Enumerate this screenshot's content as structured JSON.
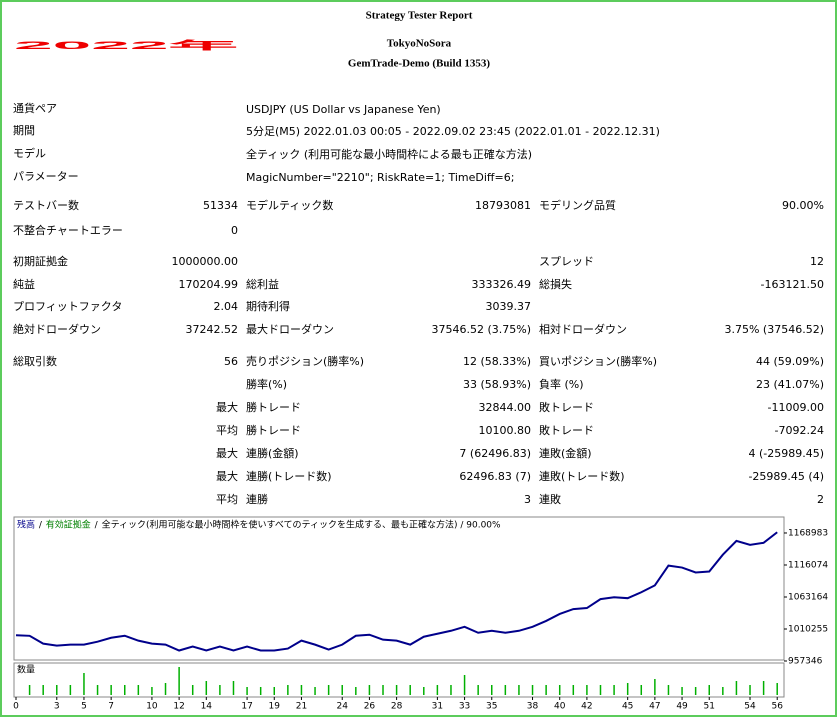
{
  "header": {
    "badge": "2022年",
    "title": "Strategy Tester Report",
    "expert": "TokyoNoSora",
    "server": "GemTrade-Demo (Build 1353)"
  },
  "info": [
    {
      "label": "通貨ペア",
      "value": "USDJPY (US Dollar vs Japanese Yen)"
    },
    {
      "label": "期間",
      "value": "5分足(M5) 2022.01.03 00:05 - 2022.09.02 23:45 (2022.01.01 - 2022.12.31)"
    },
    {
      "label": "モデル",
      "value": "全ティック (利用可能な最小時間枠による最も正確な方法)"
    },
    {
      "label": "パラメーター",
      "value": "MagicNumber=\"2210\"; RiskRate=1; TimeDiff=6;"
    }
  ],
  "stats": {
    "rows": [
      {
        "l1": "テストバー数",
        "v1": "51334",
        "l2": "モデルティック数",
        "v2": "18793081",
        "l3": "モデリング品質",
        "v3": "90.00%"
      },
      {
        "l1": "不整合チャートエラー",
        "v1": "0"
      },
      {
        "l1": "初期証拠金",
        "v1": "1000000.00",
        "l3": "スプレッド",
        "v3": "12"
      },
      {
        "l1": "純益",
        "v1": "170204.99",
        "l2": "総利益",
        "v2": "333326.49",
        "l3": "総損失",
        "v3": "-163121.50"
      },
      {
        "l1": "プロフィットファクタ",
        "v1": "2.04",
        "l2": "期待利得",
        "v2": "3039.37"
      },
      {
        "l1": "絶対ドローダウン",
        "v1": "37242.52",
        "l2": "最大ドローダウン",
        "v2": "37546.52 (3.75%)",
        "l3": "相対ドローダウン",
        "v3": "3.75% (37546.52)"
      },
      {
        "l1": "総取引数",
        "v1": "56",
        "l2": "売りポジション(勝率%)",
        "v2": "12 (58.33%)",
        "l3": "買いポジション(勝率%)",
        "v3": "44 (59.09%)"
      },
      {
        "l2": "勝率(%)",
        "v2": "33 (58.93%)",
        "l3": "負率 (%)",
        "v3": "23 (41.07%)"
      },
      {
        "v1": "最大",
        "l2": "勝トレード",
        "v2": "32844.00",
        "l3": "敗トレード",
        "v3": "-11009.00"
      },
      {
        "v1": "平均",
        "l2": "勝トレード",
        "v2": "10100.80",
        "l3": "敗トレード",
        "v3": "-7092.24"
      },
      {
        "v1": "最大",
        "l2": "連勝(金額)",
        "v2": "7 (62496.83)",
        "l3": "連敗(金額)",
        "v3": "4 (-25989.45)"
      },
      {
        "v1": "最大",
        "l2": "連勝(トレード数)",
        "v2": "62496.83 (7)",
        "l3": "連敗(トレード数)",
        "v3": "-25989.45 (4)"
      },
      {
        "v1": "平均",
        "l2": "連勝",
        "v2": "3",
        "l3": "連敗",
        "v3": "2"
      }
    ]
  },
  "chart_data": {
    "type": "line",
    "legend_separator": " / ",
    "note": "全ティック(利用可能な最小時間枠を使いすべてのティックを生成する、最も正確な方法) / 90.00%",
    "x": [
      0,
      1,
      2,
      3,
      4,
      5,
      6,
      7,
      8,
      9,
      10,
      11,
      12,
      13,
      14,
      15,
      16,
      17,
      18,
      19,
      20,
      21,
      22,
      23,
      24,
      25,
      26,
      27,
      28,
      29,
      30,
      31,
      32,
      33,
      34,
      35,
      36,
      37,
      38,
      39,
      40,
      41,
      42,
      43,
      44,
      45,
      46,
      47,
      48,
      49,
      50,
      51,
      52,
      53,
      54,
      55,
      56
    ],
    "series": [
      {
        "name": "残高",
        "color": "#00008b",
        "values": [
          1000000,
          999000,
          986100,
          982800,
          984400,
          984400,
          989300,
          995800,
          999100,
          991000,
          986100,
          984400,
          974700,
          981200,
          974700,
          981200,
          974700,
          981200,
          974700,
          974700,
          977900,
          991000,
          984400,
          976300,
          984400,
          999100,
          1000800,
          992600,
          991000,
          984400,
          997500,
          1002400,
          1007300,
          1013800,
          1004000,
          1007300,
          1004000,
          1007300,
          1013800,
          1023600,
          1035100,
          1043200,
          1044900,
          1059600,
          1062800,
          1061200,
          1071000,
          1082400,
          1115100,
          1111800,
          1103700,
          1105300,
          1133100,
          1155900,
          1149400,
          1152700,
          1170204.99
        ]
      },
      {
        "name": "有効証拠金",
        "color": "#008000"
      }
    ],
    "xlim": [
      0,
      56.5
    ],
    "xticks": [
      0,
      3,
      5,
      7,
      10,
      12,
      14,
      17,
      19,
      21,
      24,
      26,
      28,
      31,
      33,
      35,
      38,
      40,
      42,
      45,
      47,
      49,
      51,
      54,
      56
    ],
    "ylim": [
      957346,
      1195400
    ],
    "yticks": [
      957346,
      1010255,
      1063164,
      1116074,
      1168983
    ],
    "volume": {
      "name": "数量",
      "color": "#00b000",
      "ylim": [
        0,
        1.6
      ],
      "values": [
        null,
        0.5,
        0.5,
        0.5,
        0.5,
        1.1,
        0.5,
        0.5,
        0.5,
        0.5,
        0.4,
        0.6,
        1.4,
        0.5,
        0.7,
        0.5,
        0.7,
        0.4,
        0.4,
        0.4,
        0.5,
        0.5,
        0.4,
        0.5,
        0.5,
        0.4,
        0.5,
        0.5,
        0.5,
        0.5,
        0.4,
        0.5,
        0.5,
        1.0,
        0.5,
        0.5,
        0.5,
        0.5,
        0.5,
        0.5,
        0.5,
        0.5,
        0.5,
        0.5,
        0.5,
        0.6,
        0.5,
        0.8,
        0.5,
        0.4,
        0.4,
        0.5,
        0.4,
        0.7,
        0.5,
        0.7,
        0.6
      ]
    }
  }
}
